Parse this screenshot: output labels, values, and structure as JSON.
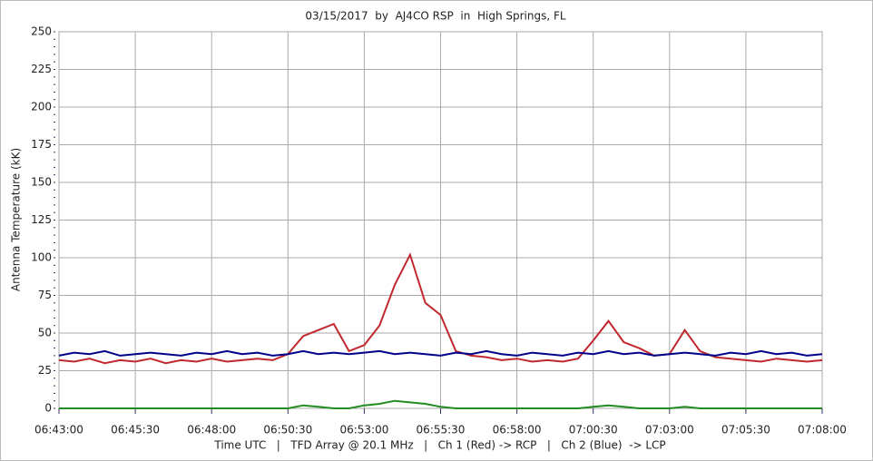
{
  "chart_data": {
    "type": "line",
    "title": "03/15/2017  by  AJ4CO RSP  in  High Springs, FL",
    "ylabel": "Antenna Temperature (kK)",
    "xlabel": "Time UTC   |   TFD Array @ 20.1 MHz   |   Ch 1 (Red) -> RCP   |   Ch 2 (Blue)  -> LCP",
    "x": [
      "06:43:00",
      "06:43:30",
      "06:44:00",
      "06:44:30",
      "06:45:00",
      "06:45:30",
      "06:46:00",
      "06:46:30",
      "06:47:00",
      "06:47:30",
      "06:48:00",
      "06:48:30",
      "06:49:00",
      "06:49:30",
      "06:50:00",
      "06:50:30",
      "06:51:00",
      "06:51:30",
      "06:52:00",
      "06:52:30",
      "06:53:00",
      "06:53:30",
      "06:54:00",
      "06:54:30",
      "06:55:00",
      "06:55:30",
      "06:56:00",
      "06:56:30",
      "06:57:00",
      "06:57:30",
      "06:58:00",
      "06:58:30",
      "06:59:00",
      "06:59:30",
      "07:00:00",
      "07:00:30",
      "07:01:00",
      "07:01:30",
      "07:02:00",
      "07:02:30",
      "07:03:00",
      "07:03:30",
      "07:04:00",
      "07:04:30",
      "07:05:00",
      "07:05:30",
      "07:06:00",
      "07:06:30",
      "07:07:00",
      "07:07:30",
      "07:08:00"
    ],
    "series": [
      {
        "color": "#c0282e",
        "values": [
          32,
          31,
          33,
          30,
          32,
          31,
          33,
          30,
          32,
          31,
          33,
          31,
          32,
          33,
          32,
          36,
          48,
          52,
          56,
          38,
          42,
          55,
          82,
          102,
          70,
          62,
          38,
          35,
          34,
          32,
          33,
          31,
          32,
          31,
          33,
          45,
          58,
          44,
          40,
          35,
          36,
          52,
          38,
          34,
          33,
          32,
          31,
          33,
          32,
          31,
          32
        ]
      },
      {
        "color": "#00008b",
        "values": [
          35,
          37,
          36,
          38,
          35,
          36,
          37,
          36,
          35,
          37,
          36,
          38,
          36,
          37,
          35,
          36,
          38,
          36,
          37,
          36,
          37,
          38,
          36,
          37,
          36,
          35,
          37,
          36,
          38,
          36,
          35,
          37,
          36,
          35,
          37,
          36,
          38,
          36,
          37,
          35,
          36,
          37,
          36,
          35,
          37,
          36,
          38,
          36,
          37,
          35,
          36
        ]
      },
      {
        "color": "#228b22",
        "values": [
          0,
          0,
          0,
          0,
          0,
          0,
          0,
          0,
          0,
          0,
          0,
          0,
          0,
          0,
          0,
          0,
          2,
          1,
          0,
          0,
          2,
          3,
          5,
          4,
          3,
          1,
          0,
          0,
          0,
          0,
          0,
          0,
          0,
          0,
          0,
          1,
          2,
          1,
          0,
          0,
          0,
          1,
          0,
          0,
          0,
          0,
          0,
          0,
          0,
          0,
          0
        ]
      }
    ],
    "xlim": [
      "06:43:00",
      "07:08:00"
    ],
    "xticks": [
      "06:43:00",
      "06:45:30",
      "06:48:00",
      "06:50:30",
      "06:53:00",
      "06:55:30",
      "06:58:00",
      "07:00:30",
      "07:03:00",
      "07:05:30",
      "07:08:00"
    ],
    "ylim": [
      0,
      250
    ],
    "yticks": [
      0,
      25,
      50,
      75,
      100,
      125,
      150,
      175,
      200,
      225,
      250
    ],
    "grid": true
  }
}
